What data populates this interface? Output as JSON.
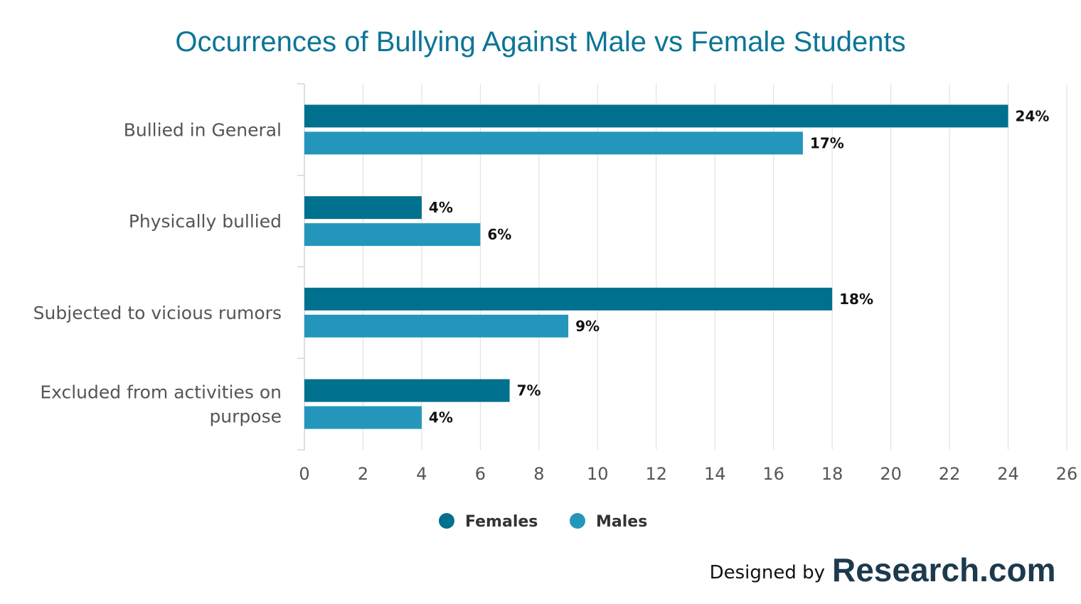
{
  "chart_data": {
    "type": "bar",
    "orientation": "horizontal",
    "title": "Occurrences of Bullying Against Male vs Female Students",
    "categories": [
      [
        "Bullied in General"
      ],
      [
        "Physically bullied"
      ],
      [
        "Subjected to vicious rumors"
      ],
      [
        "Excluded from activities on",
        "purpose"
      ]
    ],
    "series": [
      {
        "name": "Females",
        "color": "#00708f",
        "values": [
          24,
          4,
          18,
          7
        ],
        "labels": [
          "24%",
          "4%",
          "18%",
          "7%"
        ]
      },
      {
        "name": "Males",
        "color": "#2596bb",
        "values": [
          17,
          6,
          9,
          4
        ],
        "labels": [
          "17%",
          "6%",
          "9%",
          "4%"
        ]
      }
    ],
    "xlim": [
      0,
      26
    ],
    "xticks": [
      0,
      2,
      4,
      6,
      8,
      10,
      12,
      14,
      16,
      18,
      20,
      22,
      24,
      26
    ],
    "grid": true,
    "legend_position": "bottom"
  },
  "credit": {
    "prefix": "Designed by",
    "brand": "Research",
    "tld": ".com"
  }
}
